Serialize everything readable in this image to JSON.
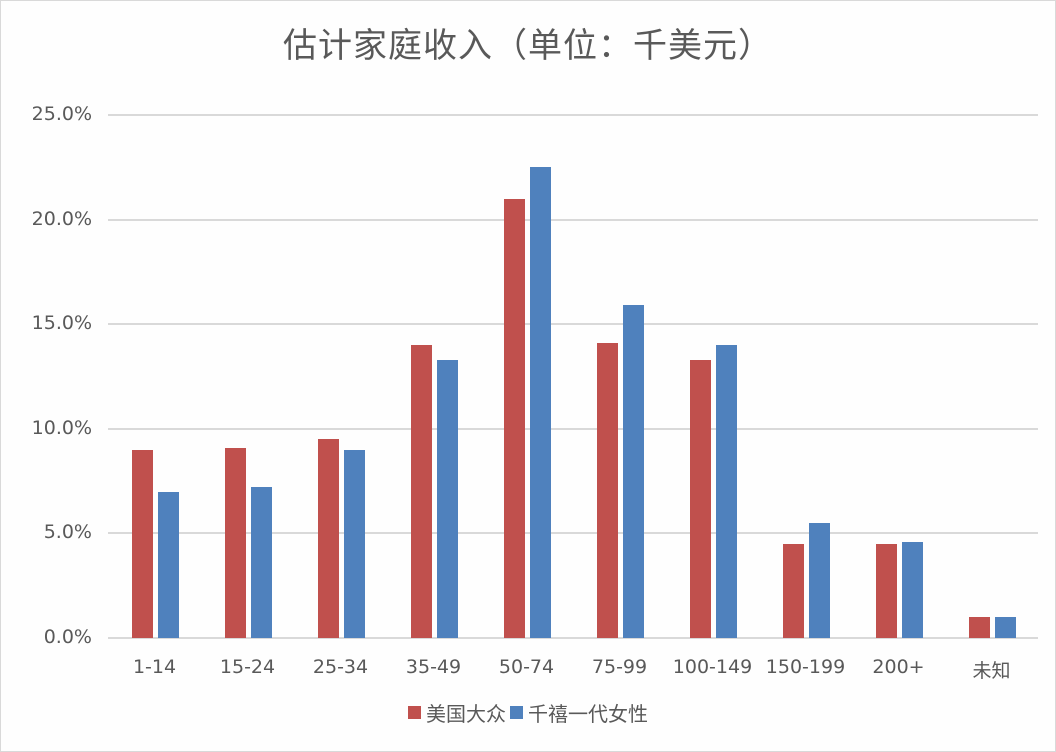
{
  "chart_data": {
    "type": "bar",
    "title": "估计家庭收入（单位：千美元）",
    "xlabel": "",
    "ylabel": "",
    "ylim": [
      0,
      25
    ],
    "yticks": [
      "0.0%",
      "5.0%",
      "10.0%",
      "15.0%",
      "20.0%",
      "25.0%"
    ],
    "grid": true,
    "legend_position": "bottom",
    "categories": [
      "1-14",
      "15-24",
      "25-34",
      "35-49",
      "50-74",
      "75-99",
      "100-149",
      "150-199",
      "200+",
      "未知"
    ],
    "series": [
      {
        "name": "美国大众",
        "color": "#c0504d",
        "values": [
          9.0,
          9.1,
          9.5,
          14.0,
          21.0,
          14.1,
          13.3,
          4.5,
          4.5,
          1.0
        ]
      },
      {
        "name": "千禧一代女性",
        "color": "#4f81bd",
        "values": [
          7.0,
          7.2,
          9.0,
          13.3,
          22.5,
          15.9,
          14.0,
          5.5,
          4.6,
          1.0
        ]
      }
    ]
  }
}
